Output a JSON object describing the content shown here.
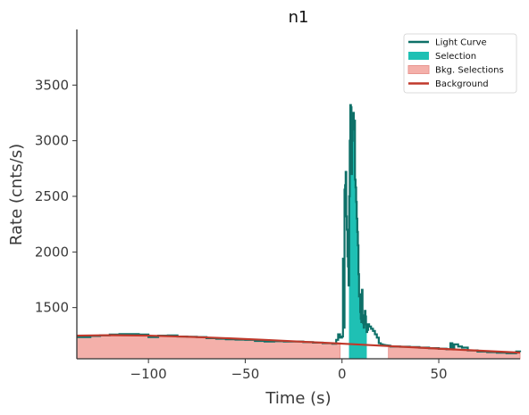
{
  "chart_data": {
    "type": "line",
    "title": "n1",
    "xlabel": "Time (s)",
    "ylabel": "Rate (cnts/s)",
    "xlim": [
      -137,
      92
    ],
    "ylim": [
      1040,
      4000
    ],
    "xticks": [
      -100,
      -50,
      0,
      50
    ],
    "xtick_labels": [
      "−100",
      "−50",
      "0",
      "50"
    ],
    "yticks": [
      1500,
      2000,
      2500,
      3000,
      3500
    ],
    "ytick_labels": [
      "1500",
      "2000",
      "2500",
      "3000",
      "3500"
    ],
    "grid": false,
    "legend_position": "top-right",
    "legend": [
      {
        "label": "Light Curve",
        "kind": "line",
        "color": "#0e7068"
      },
      {
        "label": "Selection",
        "kind": "patch",
        "color": "#1fc0b4"
      },
      {
        "label": "Bkg. Selections",
        "kind": "patch",
        "color": "#f4b0aa"
      },
      {
        "label": "Background",
        "kind": "line",
        "color": "#c0392b"
      }
    ],
    "colors": {
      "light_curve": "#0e7068",
      "selection": "#1fc0b4",
      "bkg_fill": "#f4b0aa",
      "bkg_edge": "#e89690",
      "background": "#c0392b",
      "axis": "#333333"
    },
    "selection_interval": [
      3.6,
      12.8
    ],
    "bkg_intervals": [
      [
        -137,
        -1
      ],
      [
        24,
        92
      ]
    ],
    "background_curve": {
      "x": [
        -137,
        -120,
        -100,
        -80,
        -60,
        -40,
        -20,
        0,
        20,
        40,
        60,
        80,
        92
      ],
      "y": [
        1248,
        1252,
        1248,
        1238,
        1225,
        1210,
        1193,
        1176,
        1158,
        1140,
        1122,
        1105,
        1095
      ]
    },
    "light_curve": {
      "x": [
        -137,
        -130,
        -125,
        -120,
        -115,
        -110,
        -105,
        -100,
        -95,
        -90,
        -85,
        -80,
        -75,
        -70,
        -65,
        -60,
        -55,
        -50,
        -45,
        -40,
        -35,
        -30,
        -25,
        -20,
        -15,
        -10,
        -5,
        -3,
        -2,
        -1,
        0,
        0.5,
        1,
        1.3,
        1.6,
        1.9,
        2.2,
        2.5,
        2.8,
        3.1,
        3.4,
        3.7,
        4,
        4.3,
        4.6,
        4.9,
        5.2,
        5.5,
        5.8,
        6.1,
        6.4,
        6.7,
        7,
        7.3,
        7.6,
        7.9,
        8.2,
        8.5,
        8.8,
        9.1,
        9.4,
        9.7,
        10,
        10.3,
        10.6,
        10.9,
        11.2,
        11.5,
        11.8,
        12.1,
        12.4,
        12.7,
        13,
        13.5,
        14,
        15,
        16,
        17,
        18,
        19,
        20,
        21,
        22,
        23,
        24,
        25,
        30,
        35,
        40,
        45,
        50,
        54,
        56,
        57,
        58,
        60,
        62,
        65,
        70,
        75,
        80,
        85,
        90,
        92
      ],
      "y": [
        1235,
        1245,
        1250,
        1258,
        1262,
        1262,
        1258,
        1235,
        1248,
        1250,
        1240,
        1238,
        1235,
        1225,
        1220,
        1215,
        1212,
        1210,
        1200,
        1195,
        1198,
        1195,
        1195,
        1190,
        1185,
        1180,
        1175,
        1210,
        1260,
        1230,
        1240,
        1940,
        1320,
        2560,
        2600,
        2720,
        2320,
        2200,
        1960,
        1870,
        1700,
        2500,
        3000,
        3320,
        3300,
        2700,
        3000,
        3100,
        3250,
        3120,
        3180,
        2650,
        2580,
        2450,
        2300,
        2180,
        2060,
        1800,
        1600,
        1620,
        1460,
        1400,
        1370,
        1660,
        1430,
        1360,
        1320,
        1410,
        1470,
        1420,
        1350,
        1280,
        1300,
        1350,
        1330,
        1310,
        1290,
        1260,
        1230,
        1180,
        1170,
        1165,
        1162,
        1160,
        1158,
        1150,
        1148,
        1145,
        1140,
        1135,
        1130,
        1125,
        1180,
        1140,
        1170,
        1150,
        1140,
        1115,
        1105,
        1100,
        1095,
        1090,
        1105,
        1100
      ]
    }
  }
}
